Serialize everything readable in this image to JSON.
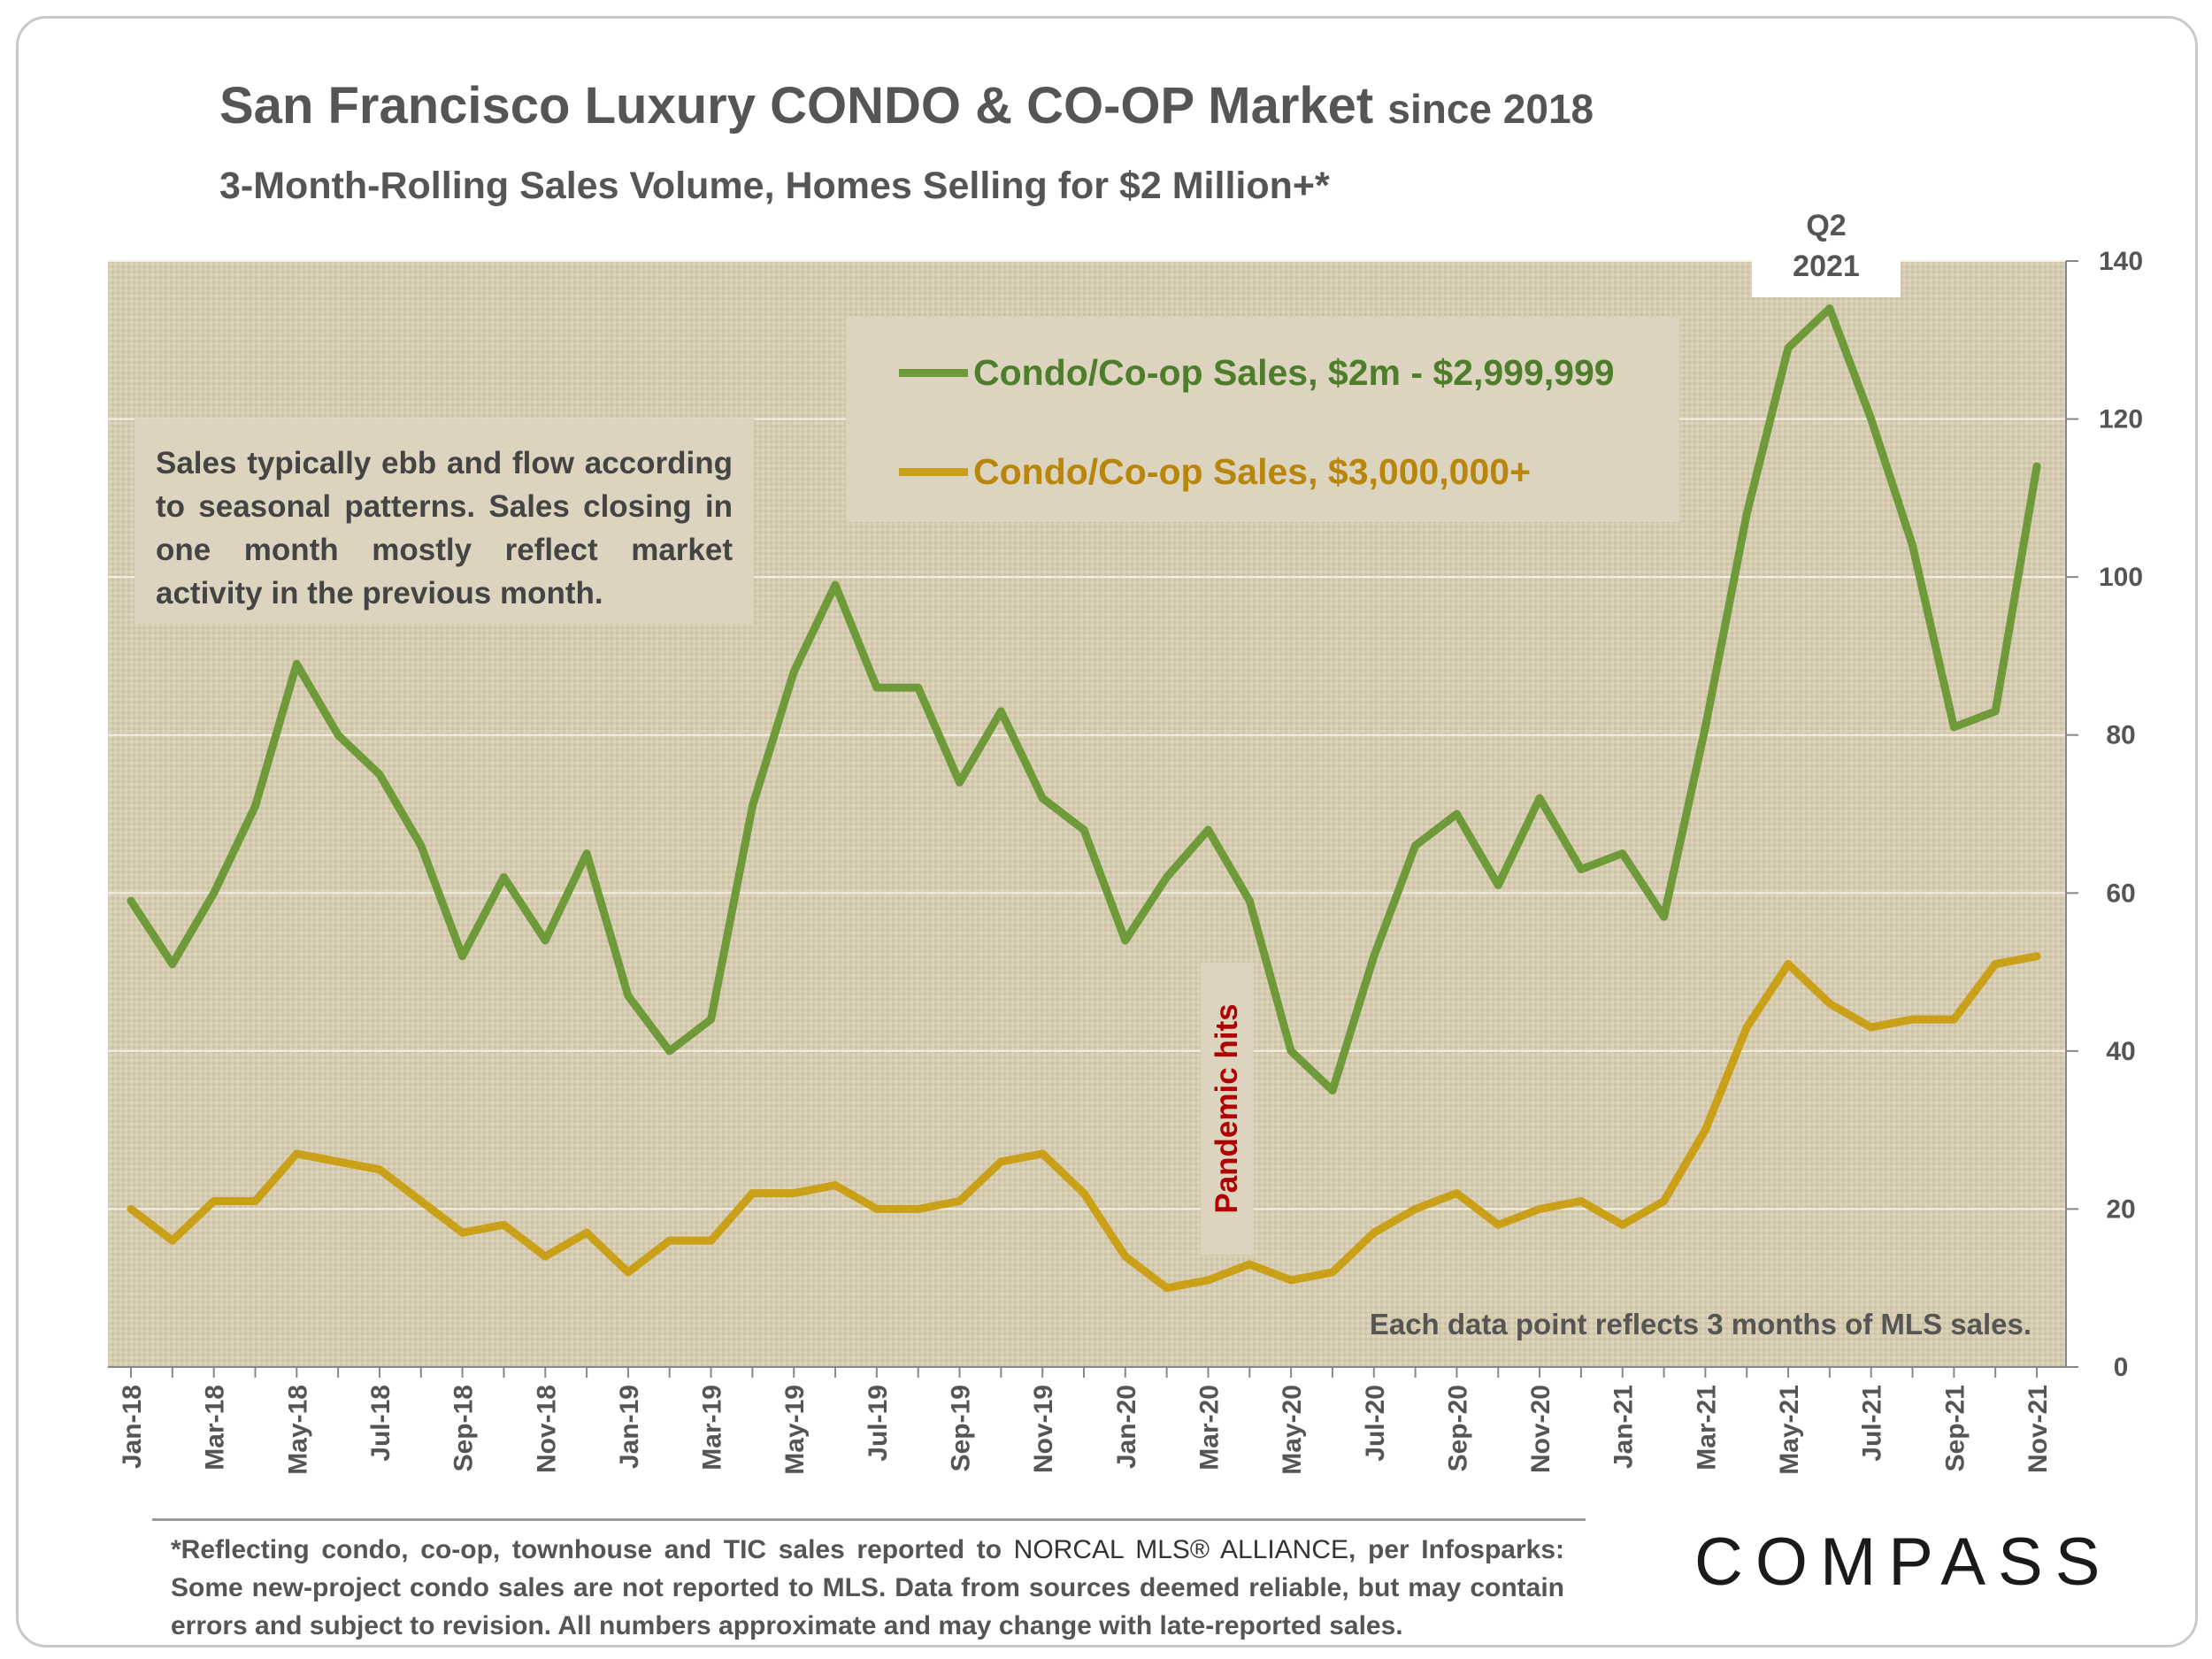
{
  "header": {
    "title": "San Francisco Luxury CONDO & CO-OP Market",
    "title_suffix": "since 2018",
    "subtitle": "3-Month-Rolling Sales Volume, Homes Selling for $2 Million+*"
  },
  "annotations": {
    "note": "Sales typically ebb and flow according to seasonal patterns. Sales closing in one month mostly reflect market activity in the previous month.",
    "peak_label_line1": "Q2",
    "peak_label_line2": "2021",
    "pandemic": "Pandemic hits",
    "datapoint_note": "Each data point reflects 3 months of MLS sales."
  },
  "footer": {
    "footnote_pre": "*Reflecting condo, co-op, townhouse and TIC sales reported to",
    "footnote_mls": "NORCAL MLS® ALLIANCE",
    "footnote_post": ", per Infosparks: Some new-project condo sales are not reported to MLS. Data from sources deemed reliable, but may contain errors and subject to revision. All numbers approximate and may change with late-reported sales.",
    "logo": "COMPASS"
  },
  "chart_data": {
    "type": "line",
    "y_axis_position": "right",
    "ylim": [
      0,
      140
    ],
    "yticks": [
      0,
      20,
      40,
      60,
      80,
      100,
      120,
      140
    ],
    "grid": true,
    "legend_position": "top-center",
    "x_labels": [
      "Jan-18",
      "Mar-18",
      "May-18",
      "Jul-18",
      "Sep-18",
      "Nov-18",
      "Jan-19",
      "Mar-19",
      "May-19",
      "Jul-19",
      "Sep-19",
      "Nov-19",
      "Jan-20",
      "Mar-20",
      "May-20",
      "Jul-20",
      "Sep-20",
      "Nov-20",
      "Jan-21",
      "Mar-21",
      "May-21",
      "Jul-21",
      "Sep-21",
      "Nov-21"
    ],
    "x": [
      "Jan-18",
      "Feb-18",
      "Mar-18",
      "Apr-18",
      "May-18",
      "Jun-18",
      "Jul-18",
      "Aug-18",
      "Sep-18",
      "Oct-18",
      "Nov-18",
      "Dec-18",
      "Jan-19",
      "Feb-19",
      "Mar-19",
      "Apr-19",
      "May-19",
      "Jun-19",
      "Jul-19",
      "Aug-19",
      "Sep-19",
      "Oct-19",
      "Nov-19",
      "Dec-19",
      "Jan-20",
      "Feb-20",
      "Mar-20",
      "Apr-20",
      "May-20",
      "Jun-20",
      "Jul-20",
      "Aug-20",
      "Sep-20",
      "Oct-20",
      "Nov-20",
      "Dec-20",
      "Jan-21",
      "Feb-21",
      "Mar-21",
      "Apr-21",
      "May-21",
      "Jun-21",
      "Jul-21",
      "Aug-21",
      "Sep-21",
      "Oct-21",
      "Nov-21"
    ],
    "series": [
      {
        "name": "Condo/Co-op Sales, $2m - $2,999,999",
        "color": "#6f9a3a",
        "label_color": "#4e7d2c",
        "values": [
          59,
          51,
          60,
          71,
          89,
          80,
          75,
          66,
          52,
          62,
          54,
          65,
          47,
          40,
          44,
          71,
          88,
          99,
          86,
          86,
          74,
          83,
          72,
          68,
          54,
          62,
          68,
          59,
          40,
          35,
          52,
          66,
          70,
          61,
          72,
          63,
          65,
          57,
          81,
          108,
          129,
          134,
          120,
          104,
          81,
          83,
          114
        ]
      },
      {
        "name": "Condo/Co-op Sales, $3,000,000+",
        "color": "#c9a017",
        "label_color": "#b8860b",
        "values": [
          20,
          16,
          21,
          21,
          27,
          26,
          25,
          21,
          17,
          18,
          14,
          17,
          12,
          16,
          16,
          22,
          22,
          23,
          20,
          20,
          21,
          26,
          27,
          22,
          14,
          10,
          11,
          13,
          11,
          12,
          17,
          20,
          22,
          18,
          20,
          21,
          18,
          21,
          30,
          43,
          51,
          46,
          43,
          44,
          44,
          51,
          52
        ]
      }
    ]
  }
}
